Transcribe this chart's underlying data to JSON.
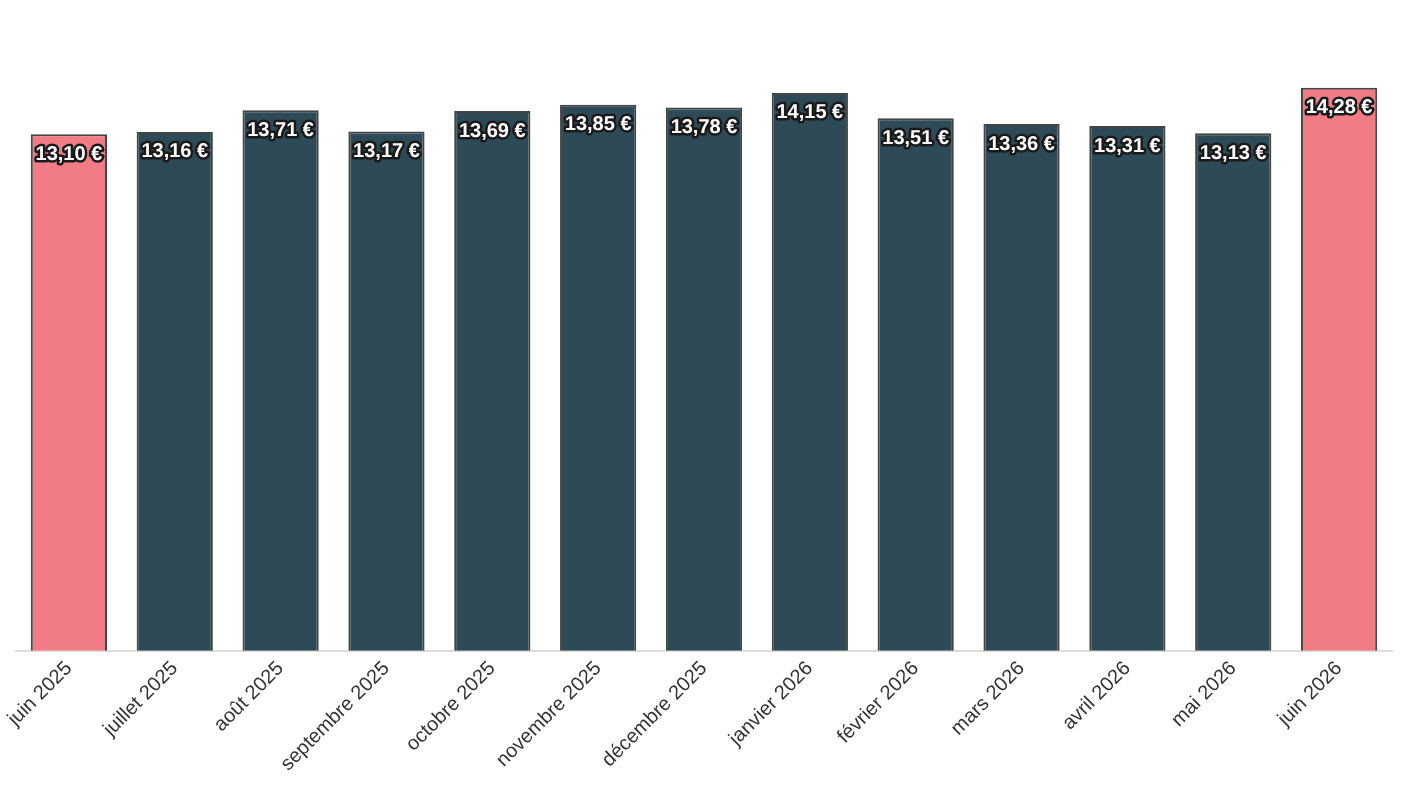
{
  "chart_data": {
    "type": "bar",
    "categories": [
      "juin 2025",
      "juillet 2025",
      "août 2025",
      "septembre 2025",
      "octobre 2025",
      "novembre 2025",
      "décembre 2025",
      "janvier 2026",
      "février 2026",
      "mars 2026",
      "avril 2026",
      "mai 2026",
      "juin 2026"
    ],
    "values": [
      13.1,
      13.16,
      13.71,
      13.17,
      13.69,
      13.85,
      13.78,
      14.15,
      13.51,
      13.36,
      13.31,
      13.13,
      14.28
    ],
    "value_labels": [
      "13,10 €",
      "13,16 €",
      "13,71 €",
      "13,17 €",
      "13,69 €",
      "13,85 €",
      "13,78 €",
      "14,15 €",
      "13,51 €",
      "13,36 €",
      "13,31 €",
      "13,13 €",
      "14,28 €"
    ],
    "colors": [
      "#f27c85",
      "#2e4a56",
      "#2e4a56",
      "#2e4a56",
      "#2e4a56",
      "#2e4a56",
      "#2e4a56",
      "#2e4a56",
      "#2e4a56",
      "#2e4a56",
      "#2e4a56",
      "#2e4a56",
      "#f27c85"
    ],
    "grid": false,
    "legend": false
  }
}
